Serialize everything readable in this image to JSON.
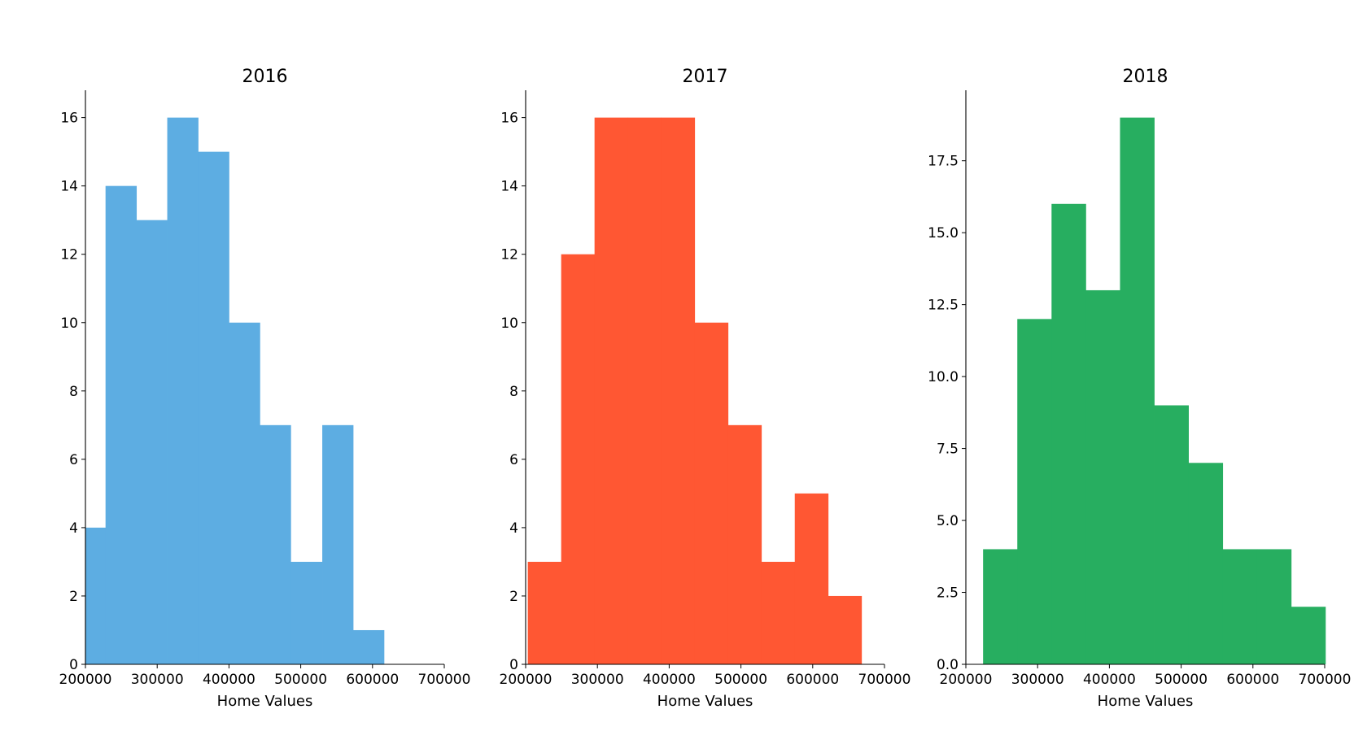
{
  "figure": {
    "chart_data": [
      {
        "type": "bar",
        "title": "2016",
        "xlabel": "Home Values",
        "ylabel": "",
        "color": "#5DADE2",
        "xlim": [
          200000,
          700000
        ],
        "ylim": [
          0,
          16.8
        ],
        "xticks": [
          "200000",
          "300000",
          "400000",
          "500000",
          "600000",
          "700000"
        ],
        "yticks": [
          "0",
          "2",
          "4",
          "6",
          "8",
          "10",
          "12",
          "14",
          "16"
        ],
        "bins": [
          {
            "x0": 200000,
            "x1": 228000,
            "count": 4
          },
          {
            "x0": 228000,
            "x1": 271000,
            "count": 14
          },
          {
            "x0": 271000,
            "x1": 314000,
            "count": 13
          },
          {
            "x0": 314000,
            "x1": 357000,
            "count": 16
          },
          {
            "x0": 357000,
            "x1": 400000,
            "count": 15
          },
          {
            "x0": 400000,
            "x1": 443000,
            "count": 10
          },
          {
            "x0": 443000,
            "x1": 486000,
            "count": 7
          },
          {
            "x0": 486000,
            "x1": 530000,
            "count": 3
          },
          {
            "x0": 530000,
            "x1": 573000,
            "count": 7
          },
          {
            "x0": 573000,
            "x1": 616000,
            "count": 1
          }
        ]
      },
      {
        "type": "bar",
        "title": "2017",
        "xlabel": "Home Values",
        "ylabel": "",
        "color": "#FF5733",
        "xlim": [
          200000,
          700000
        ],
        "ylim": [
          0,
          16.8
        ],
        "xticks": [
          "200000",
          "300000",
          "400000",
          "500000",
          "600000",
          "700000"
        ],
        "yticks": [
          "0",
          "2",
          "4",
          "6",
          "8",
          "10",
          "12",
          "14",
          "16"
        ],
        "bins": [
          {
            "x0": 203000,
            "x1": 249500,
            "count": 3
          },
          {
            "x0": 249500,
            "x1": 296000,
            "count": 12
          },
          {
            "x0": 296000,
            "x1": 342500,
            "count": 16
          },
          {
            "x0": 342500,
            "x1": 389000,
            "count": 16
          },
          {
            "x0": 389000,
            "x1": 435500,
            "count": 16
          },
          {
            "x0": 435500,
            "x1": 482000,
            "count": 10
          },
          {
            "x0": 482000,
            "x1": 528500,
            "count": 7
          },
          {
            "x0": 528500,
            "x1": 575000,
            "count": 3
          },
          {
            "x0": 575000,
            "x1": 621500,
            "count": 5
          },
          {
            "x0": 621500,
            "x1": 668000,
            "count": 2
          }
        ]
      },
      {
        "type": "bar",
        "title": "2018",
        "xlabel": "Home Values",
        "ylabel": "",
        "color": "#27AE60",
        "xlim": [
          200000,
          700000
        ],
        "ylim": [
          0,
          19.95
        ],
        "xticks": [
          "200000",
          "300000",
          "400000",
          "500000",
          "600000",
          "700000"
        ],
        "yticks": [
          "0.0",
          "2.5",
          "5.0",
          "7.5",
          "10.0",
          "12.5",
          "15.0",
          "17.5"
        ],
        "bins": [
          {
            "x0": 224000,
            "x1": 271700,
            "count": 4
          },
          {
            "x0": 271700,
            "x1": 319400,
            "count": 12
          },
          {
            "x0": 319400,
            "x1": 367100,
            "count": 16
          },
          {
            "x0": 367100,
            "x1": 414800,
            "count": 13
          },
          {
            "x0": 414800,
            "x1": 462500,
            "count": 19
          },
          {
            "x0": 462500,
            "x1": 510200,
            "count": 9
          },
          {
            "x0": 510200,
            "x1": 557900,
            "count": 7
          },
          {
            "x0": 557900,
            "x1": 605600,
            "count": 4
          },
          {
            "x0": 605600,
            "x1": 653300,
            "count": 4
          },
          {
            "x0": 653300,
            "x1": 701000,
            "count": 2
          }
        ]
      }
    ]
  }
}
